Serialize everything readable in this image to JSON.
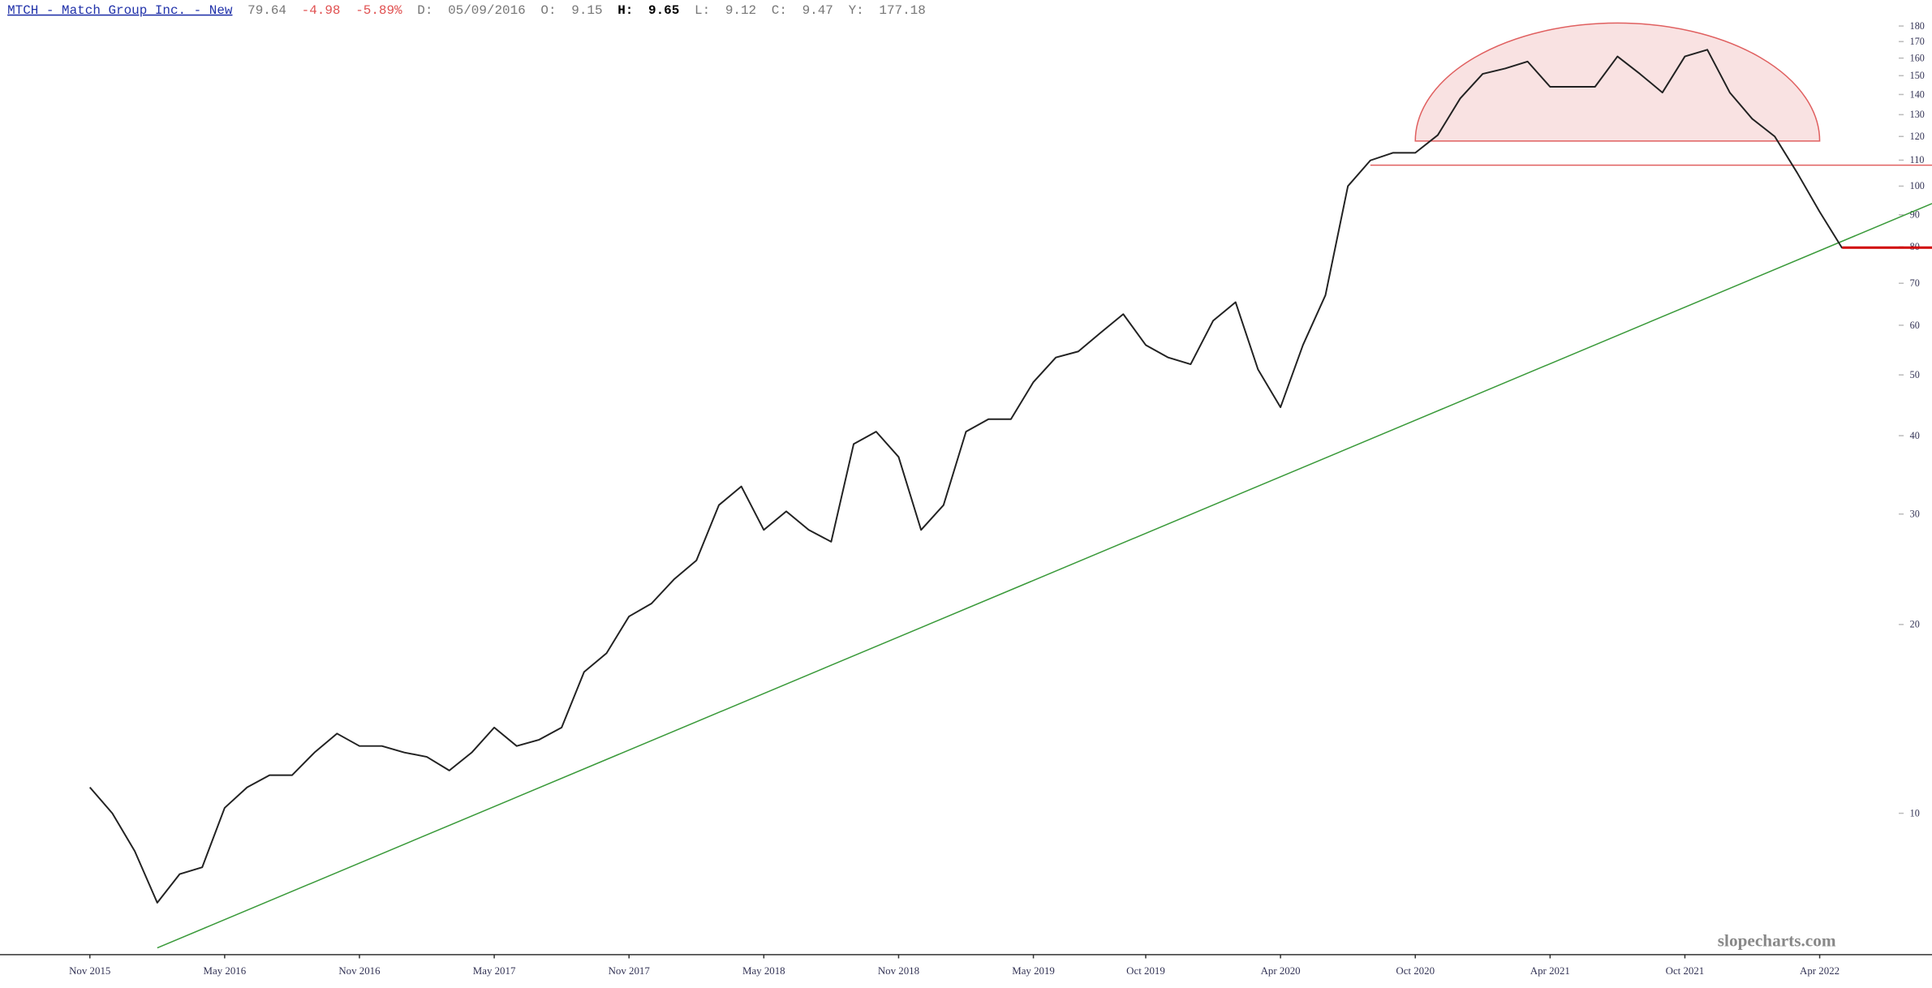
{
  "chart_data": {
    "type": "line",
    "header": {
      "symbol": "MTCH - Match Group Inc. - New",
      "last": 79.64,
      "change": -4.98,
      "change_pct": "-5.89%",
      "date_label": "D:",
      "date": "05/09/2016",
      "open_label": "O:",
      "open": 9.15,
      "high_label": "H:",
      "high": 9.65,
      "low_label": "L:",
      "low": 9.12,
      "close_label": "C:",
      "close": 9.47,
      "year_label": "Y:",
      "year_high": 177.18
    },
    "watermark": "slopecharts.com",
    "x": [
      "2015-11",
      "2015-12",
      "2016-01",
      "2016-02",
      "2016-03",
      "2016-04",
      "2016-05",
      "2016-06",
      "2016-07",
      "2016-08",
      "2016-09",
      "2016-10",
      "2016-11",
      "2016-12",
      "2017-01",
      "2017-02",
      "2017-03",
      "2017-04",
      "2017-05",
      "2017-06",
      "2017-07",
      "2017-08",
      "2017-09",
      "2017-10",
      "2017-11",
      "2017-12",
      "2018-01",
      "2018-02",
      "2018-03",
      "2018-04",
      "2018-05",
      "2018-06",
      "2018-07",
      "2018-08",
      "2018-09",
      "2018-10",
      "2018-11",
      "2018-12",
      "2019-01",
      "2019-02",
      "2019-03",
      "2019-04",
      "2019-05",
      "2019-06",
      "2019-07",
      "2019-08",
      "2019-09",
      "2019-10",
      "2019-11",
      "2019-12",
      "2020-01",
      "2020-02",
      "2020-03",
      "2020-04",
      "2020-05",
      "2020-06",
      "2020-07",
      "2020-08",
      "2020-09",
      "2020-10",
      "2020-11",
      "2020-12",
      "2021-01",
      "2021-02",
      "2021-03",
      "2021-04",
      "2021-05",
      "2021-06",
      "2021-07",
      "2021-08",
      "2021-09",
      "2021-10",
      "2021-11",
      "2021-12",
      "2022-01",
      "2022-02",
      "2022-03",
      "2022-04",
      "2022-05"
    ],
    "series": [
      {
        "name": "MTCH",
        "color": "#222222",
        "values": [
          11,
          10,
          8.7,
          7.2,
          8,
          8.2,
          10.2,
          11,
          11.5,
          11.5,
          12.5,
          13.4,
          12.8,
          12.8,
          12.5,
          12.3,
          11.7,
          12.5,
          13.7,
          12.8,
          13.1,
          13.7,
          16.8,
          18,
          20.6,
          21.6,
          23.6,
          25.3,
          31,
          33.2,
          28.3,
          30.3,
          28.3,
          27.1,
          38.8,
          40.6,
          37,
          28.3,
          31,
          40.6,
          42.5,
          42.5,
          48.7,
          53.3,
          54.5,
          58.4,
          62.5,
          55.8,
          53.3,
          52,
          61,
          65.3,
          51,
          44.4,
          55.8,
          67,
          100,
          109.9,
          113,
          113,
          120.6,
          138,
          151,
          154,
          158,
          144,
          144,
          144,
          161,
          151,
          141,
          161,
          165,
          141,
          128,
          120,
          105,
          91,
          79.64
        ]
      }
    ],
    "xlim": [
      "2015-07",
      "2022-09"
    ],
    "xticks": [
      {
        "value": "2015-11",
        "label": "Nov 2015"
      },
      {
        "value": "2016-05",
        "label": "May 2016"
      },
      {
        "value": "2016-11",
        "label": "Nov 2016"
      },
      {
        "value": "2017-05",
        "label": "May 2017"
      },
      {
        "value": "2017-11",
        "label": "Nov 2017"
      },
      {
        "value": "2018-05",
        "label": "May 2018"
      },
      {
        "value": "2018-11",
        "label": "Nov 2018"
      },
      {
        "value": "2019-05",
        "label": "May 2019"
      },
      {
        "value": "2019-10",
        "label": "Oct 2019"
      },
      {
        "value": "2020-04",
        "label": "Apr 2020"
      },
      {
        "value": "2020-10",
        "label": "Oct 2020"
      },
      {
        "value": "2021-04",
        "label": "Apr 2021"
      },
      {
        "value": "2021-10",
        "label": "Oct 2021"
      },
      {
        "value": "2022-04",
        "label": "Apr 2022"
      }
    ],
    "ylim": [
      5.95,
      198
    ],
    "yticks": [
      10,
      20,
      30,
      40,
      50,
      60,
      70,
      80,
      90,
      100,
      110,
      120,
      130,
      140,
      150,
      160,
      170,
      180
    ],
    "log_scale": true,
    "annotations": {
      "trendline": {
        "x": [
          "2016-02",
          "2022-09"
        ],
        "y": [
          6.1,
          93.8
        ],
        "color": "#3a9a3a"
      },
      "resistance": {
        "x": "2020-08",
        "y": 108,
        "color": "#e06060"
      },
      "support": {
        "x": "2022-05",
        "y": 79.8,
        "color": "#d00000"
      },
      "dome": {
        "x": [
          "2020-10",
          "2022-04"
        ],
        "base": 118,
        "top": 182,
        "color": "#e06060"
      }
    }
  }
}
